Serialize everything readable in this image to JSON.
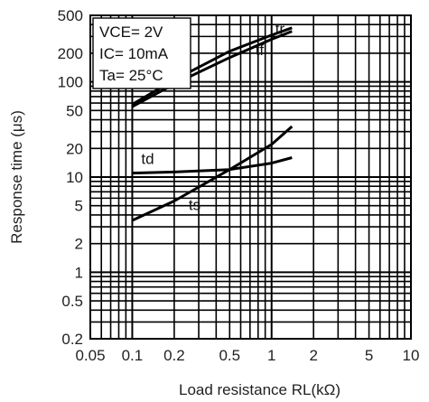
{
  "chart_data": {
    "type": "line",
    "xscale": "log",
    "yscale": "log",
    "xlim": [
      0.05,
      10
    ],
    "ylim": [
      0.2,
      500
    ],
    "xlabel": "Load resistance RL(kΩ)",
    "ylabel": "Response time (μs)",
    "x_ticks": [
      "0.05",
      "0.1",
      "0.2",
      "0.5",
      "1",
      "2",
      "5",
      "10"
    ],
    "y_ticks": [
      "0.2",
      "0.5",
      "1",
      "2",
      "5",
      "10",
      "20",
      "50",
      "100",
      "200",
      "500"
    ],
    "grid": true,
    "conditions": [
      "VCE= 2V",
      "IC= 10mA",
      "Ta= 25°C"
    ],
    "series": [
      {
        "name": "tr",
        "x": [
          0.1,
          0.2,
          0.5,
          1,
          1.4
        ],
        "y": [
          55,
          95,
          180,
          280,
          340
        ]
      },
      {
        "name": "tf",
        "x": [
          0.1,
          0.2,
          0.5,
          1,
          1.4
        ],
        "y": [
          58,
          105,
          210,
          310,
          370
        ]
      },
      {
        "name": "td",
        "x": [
          0.1,
          0.2,
          0.5,
          1,
          1.4
        ],
        "y": [
          11,
          11.3,
          12,
          14,
          16
        ]
      },
      {
        "name": "ts",
        "x": [
          0.1,
          0.2,
          0.5,
          1,
          1.4
        ],
        "y": [
          3.5,
          5.6,
          12,
          22,
          34
        ]
      }
    ]
  }
}
